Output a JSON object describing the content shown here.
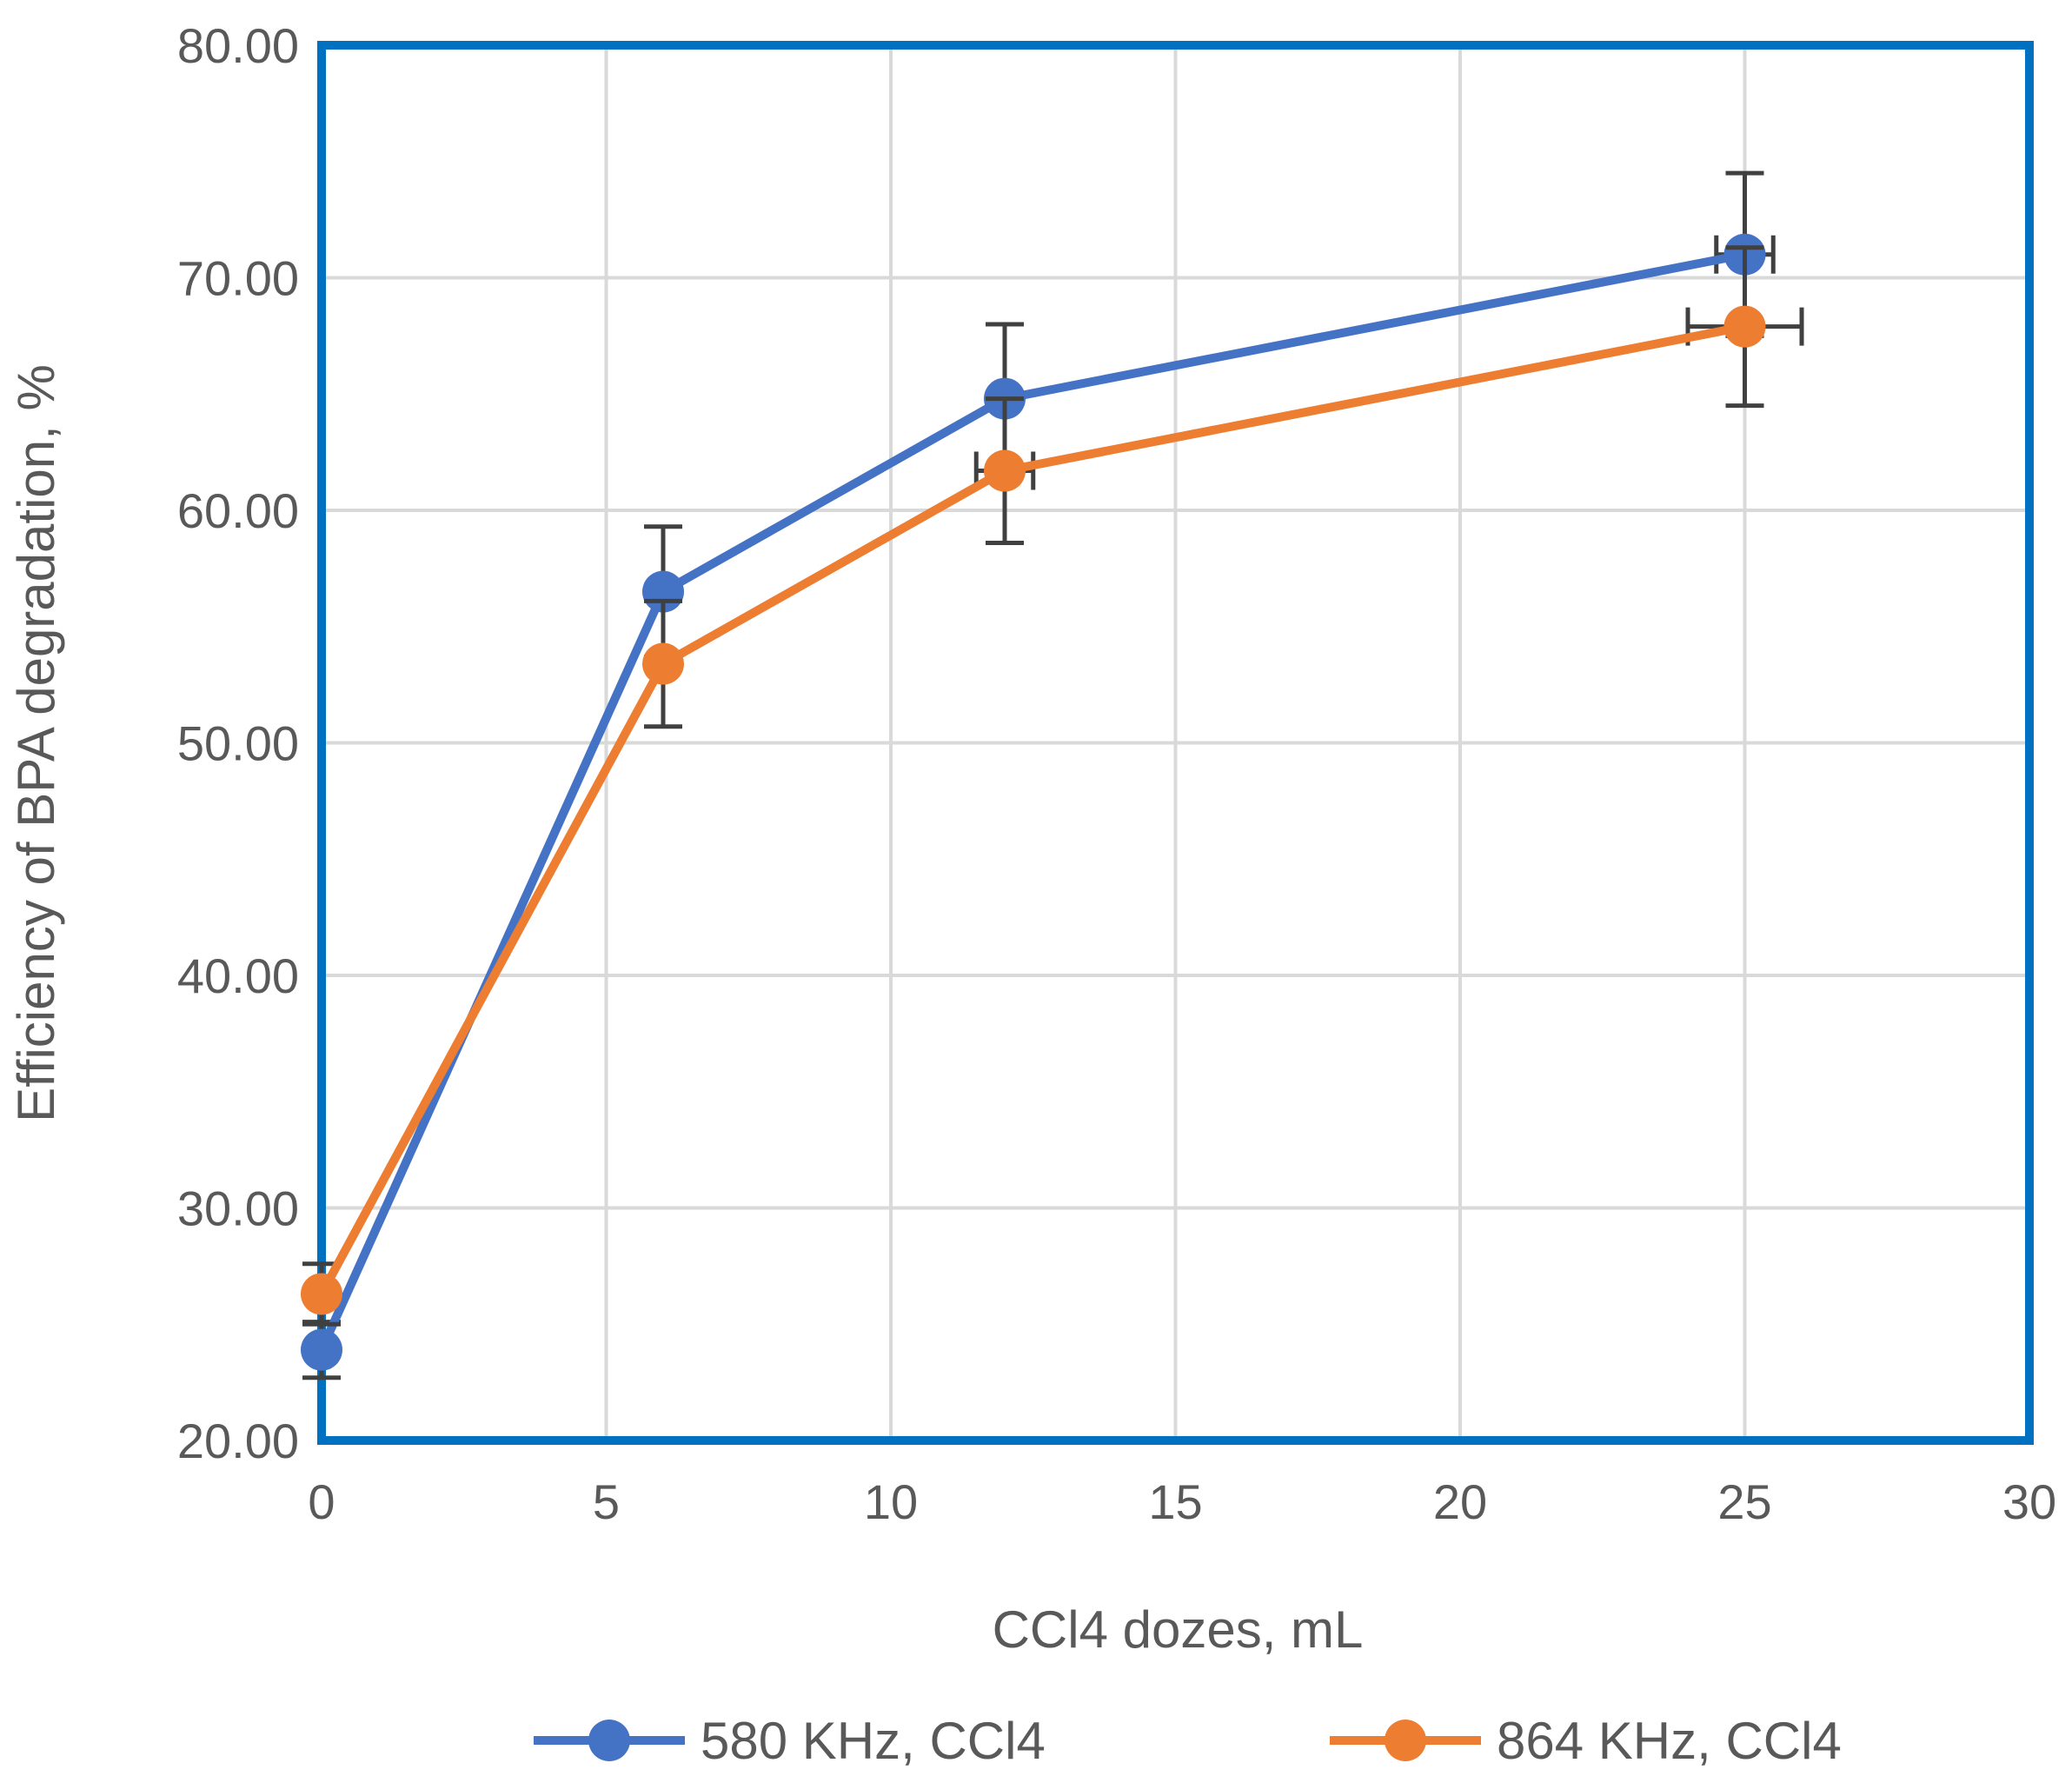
{
  "chart_data": {
    "type": "line",
    "title": "",
    "xlabel": "CCl4 dozes, mL",
    "ylabel": "Efficiency of BPA degradation, %",
    "xlim": [
      0,
      30
    ],
    "ylim": [
      20,
      80
    ],
    "xticks": [
      0,
      5,
      10,
      15,
      20,
      25,
      30
    ],
    "yticks": [
      20,
      30,
      40,
      50,
      60,
      70,
      80
    ],
    "xtick_labels": [
      "0",
      "5",
      "10",
      "15",
      "20",
      "25",
      "30"
    ],
    "ytick_labels": [
      "20.00",
      "30.00",
      "40.00",
      "50.00",
      "60.00",
      "70.00",
      "80.00"
    ],
    "grid": true,
    "legend_position": "bottom",
    "plot_border_color": "#0070C0",
    "series": [
      {
        "name": "580 KHz, CCl4",
        "color": "#4472C4",
        "x": [
          0,
          6,
          12,
          25
        ],
        "y": [
          23.9,
          56.5,
          64.8,
          71.0
        ],
        "y_err": [
          1.2,
          2.8,
          3.2,
          3.5
        ],
        "x_err": [
          0,
          0,
          0,
          0.5
        ]
      },
      {
        "name": "864 KHz, CCl4",
        "color": "#ED7D31",
        "x": [
          0,
          6,
          12,
          25
        ],
        "y": [
          26.3,
          53.4,
          61.7,
          67.9
        ],
        "y_err": [
          1.3,
          2.7,
          3.1,
          3.4
        ],
        "x_err": [
          0,
          0,
          0.5,
          1.0
        ]
      }
    ]
  }
}
